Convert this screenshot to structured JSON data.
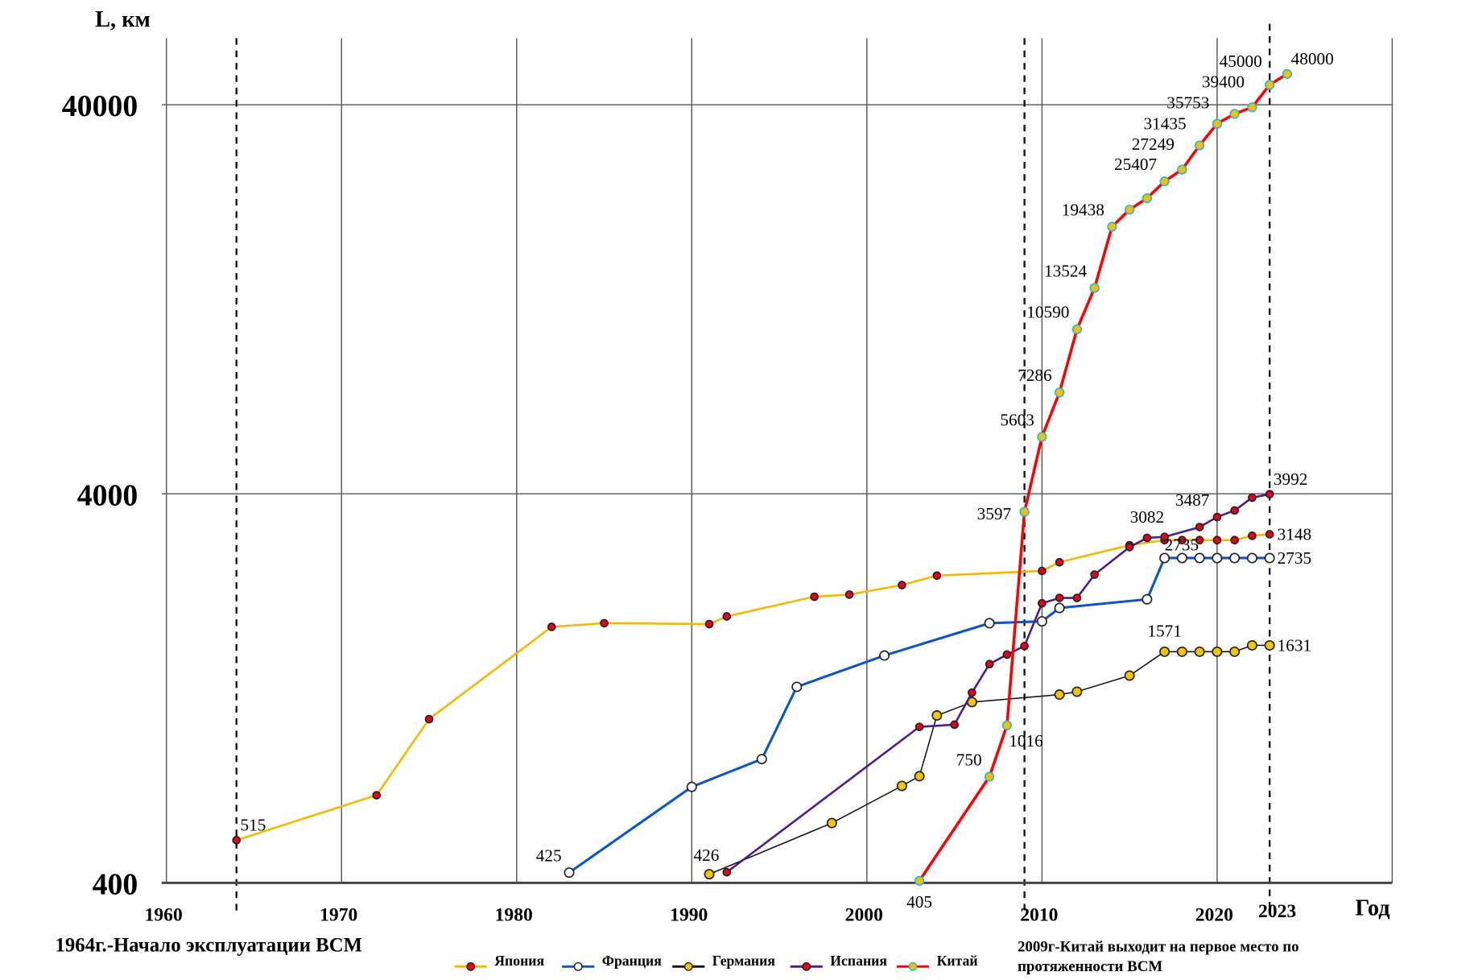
{
  "chart_data": {
    "type": "line",
    "y_scale": "log",
    "ylabel": "L, км",
    "xlabel": "Год",
    "xlim": [
      1960,
      2030
    ],
    "ylim": [
      400,
      48000
    ],
    "grid": true,
    "x_ticks": [
      1960,
      1970,
      1980,
      1990,
      2000,
      2010,
      2020
    ],
    "x_tick_labels": [
      "1960",
      "1970",
      "1980",
      "1990",
      "2000",
      "2010",
      "2020"
    ],
    "y_ticks": [
      400,
      4000,
      40000
    ],
    "y_tick_labels": [
      "400",
      "4000",
      "40000"
    ],
    "markers": [
      {
        "year": 1964,
        "label": ""
      },
      {
        "year": 2009,
        "label": ""
      },
      {
        "year": 2023,
        "label": "2023"
      }
    ],
    "annotations": {
      "left": "1964г.-Начало эксплуатации ВСМ",
      "right_line1": "2009г-Китай выходит на первое место по",
      "right_line2": "протяженности ВСМ"
    },
    "legend_position": "bottom",
    "series": [
      {
        "name": "Япония",
        "key": "japan",
        "line_color": "#f5b800",
        "marker_fill": "#e8001c",
        "marker_stroke": "#222222",
        "points": [
          {
            "x": 1964,
            "y": 515,
            "label": "515",
            "pos": "right-above"
          },
          {
            "x": 1972,
            "y": 672
          },
          {
            "x": 1975,
            "y": 1054
          },
          {
            "x": 1982,
            "y": 1820
          },
          {
            "x": 1985,
            "y": 1860
          },
          {
            "x": 1991,
            "y": 1850
          },
          {
            "x": 1992,
            "y": 1936
          },
          {
            "x": 1997,
            "y": 2175
          },
          {
            "x": 1999,
            "y": 2203
          },
          {
            "x": 2002,
            "y": 2330
          },
          {
            "x": 2004,
            "y": 2465
          },
          {
            "x": 2010,
            "y": 2534
          },
          {
            "x": 2011,
            "y": 2668
          },
          {
            "x": 2015,
            "y": 2950
          },
          {
            "x": 2017,
            "y": 3041
          },
          {
            "x": 2018,
            "y": 3041
          },
          {
            "x": 2019,
            "y": 3041
          },
          {
            "x": 2020,
            "y": 3041
          },
          {
            "x": 2021,
            "y": 3041
          },
          {
            "x": 2022,
            "y": 3120
          },
          {
            "x": 2023,
            "y": 3148,
            "label": "3148",
            "pos": "right"
          }
        ]
      },
      {
        "name": "Франция",
        "key": "france",
        "line_color": "#0a55c8",
        "marker_fill": "#ffffff",
        "marker_stroke": "#222222",
        "points": [
          {
            "x": 1983,
            "y": 425,
            "label": "425",
            "pos": "left-above"
          },
          {
            "x": 1990,
            "y": 706
          },
          {
            "x": 1994,
            "y": 832
          },
          {
            "x": 1996,
            "y": 1276
          },
          {
            "x": 2001,
            "y": 1536
          },
          {
            "x": 2007,
            "y": 1860
          },
          {
            "x": 2010,
            "y": 1880
          },
          {
            "x": 2011,
            "y": 2035
          },
          {
            "x": 2016,
            "y": 2142
          },
          {
            "x": 2017,
            "y": 2735,
            "label": "2735",
            "pos": "above-right"
          },
          {
            "x": 2018,
            "y": 2735
          },
          {
            "x": 2019,
            "y": 2735
          },
          {
            "x": 2020,
            "y": 2735
          },
          {
            "x": 2021,
            "y": 2735
          },
          {
            "x": 2022,
            "y": 2735
          },
          {
            "x": 2023,
            "y": 2735,
            "label": "2735",
            "pos": "right"
          }
        ]
      },
      {
        "name": "Германия",
        "key": "germany",
        "line_color": "#111111",
        "marker_fill": "#f5c400",
        "marker_stroke": "#222222",
        "points": [
          {
            "x": 1991,
            "y": 421
          },
          {
            "x": 1998,
            "y": 570
          },
          {
            "x": 2002,
            "y": 710
          },
          {
            "x": 2003,
            "y": 752
          },
          {
            "x": 2004,
            "y": 1077
          },
          {
            "x": 2006,
            "y": 1166
          },
          {
            "x": 2011,
            "y": 1219
          },
          {
            "x": 2012,
            "y": 1240
          },
          {
            "x": 2015,
            "y": 1364
          },
          {
            "x": 2017,
            "y": 1571,
            "label": "1571",
            "pos": "above"
          },
          {
            "x": 2018,
            "y": 1571
          },
          {
            "x": 2019,
            "y": 1571
          },
          {
            "x": 2020,
            "y": 1571
          },
          {
            "x": 2021,
            "y": 1571
          },
          {
            "x": 2022,
            "y": 1631
          },
          {
            "x": 2023,
            "y": 1631,
            "label": "1631",
            "pos": "right"
          }
        ]
      },
      {
        "name": "Испания",
        "key": "spain",
        "line_color": "#4b1d8f",
        "marker_fill": "#e8001c",
        "marker_stroke": "#222222",
        "points": [
          {
            "x": 1992,
            "y": 426,
            "label": "426",
            "pos": "left-above"
          },
          {
            "x": 2003,
            "y": 1007
          },
          {
            "x": 2005,
            "y": 1020
          },
          {
            "x": 2006,
            "y": 1233
          },
          {
            "x": 2007,
            "y": 1460
          },
          {
            "x": 2008,
            "y": 1545
          },
          {
            "x": 2009,
            "y": 1625
          },
          {
            "x": 2010,
            "y": 2092
          },
          {
            "x": 2011,
            "y": 2160
          },
          {
            "x": 2012,
            "y": 2160
          },
          {
            "x": 2013,
            "y": 2480
          },
          {
            "x": 2015,
            "y": 2918
          },
          {
            "x": 2016,
            "y": 3082,
            "label": "3082",
            "pos": "above"
          },
          {
            "x": 2017,
            "y": 3100
          },
          {
            "x": 2019,
            "y": 3285
          },
          {
            "x": 2020,
            "y": 3487,
            "label": "3487",
            "pos": "left-above"
          },
          {
            "x": 2021,
            "y": 3625
          },
          {
            "x": 2022,
            "y": 3910
          },
          {
            "x": 2023,
            "y": 3992,
            "label": "3992",
            "pos": "right-above"
          }
        ]
      },
      {
        "name": "Китай",
        "key": "china",
        "line_color": "#ff0000",
        "marker_fill": "#f2c200",
        "marker_stroke": "#2ab7d8",
        "points": [
          {
            "x": 2003,
            "y": 405,
            "label": "405",
            "pos": "below"
          },
          {
            "x": 2007,
            "y": 750,
            "label": "750",
            "pos": "left-above"
          },
          {
            "x": 2008,
            "y": 1016,
            "label": "1016",
            "pos": "below-right"
          },
          {
            "x": 2009,
            "y": 3597,
            "label": "3597",
            "pos": "left"
          },
          {
            "x": 2010,
            "y": 5603,
            "label": "5603",
            "pos": "left-above"
          },
          {
            "x": 2011,
            "y": 7286,
            "label": "7286",
            "pos": "left-above"
          },
          {
            "x": 2012,
            "y": 10590,
            "label": "10590",
            "pos": "left-above"
          },
          {
            "x": 2013,
            "y": 13524,
            "label": "13524",
            "pos": "left-above"
          },
          {
            "x": 2014,
            "y": 19438,
            "label": "19438",
            "pos": "left-above"
          },
          {
            "x": 2015,
            "y": 21500
          },
          {
            "x": 2016,
            "y": 23000
          },
          {
            "x": 2017,
            "y": 25407,
            "label": "25407",
            "pos": "left-above"
          },
          {
            "x": 2018,
            "y": 27249,
            "label": "27249",
            "pos": "left-above"
          },
          {
            "x": 2019,
            "y": 31435,
            "label": "31435",
            "pos": "left"
          },
          {
            "x": 2020,
            "y": 35753,
            "label": "35753",
            "pos": "left-above"
          },
          {
            "x": 2021,
            "y": 37900
          },
          {
            "x": 2022,
            "y": 39400,
            "label": "39400",
            "pos": "left-above"
          },
          {
            "x": 2023,
            "y": 45000,
            "label": "45000",
            "pos": "left-above"
          },
          {
            "x": 2024,
            "y": 48000,
            "label": "48000",
            "pos": "right-above"
          }
        ]
      }
    ]
  }
}
